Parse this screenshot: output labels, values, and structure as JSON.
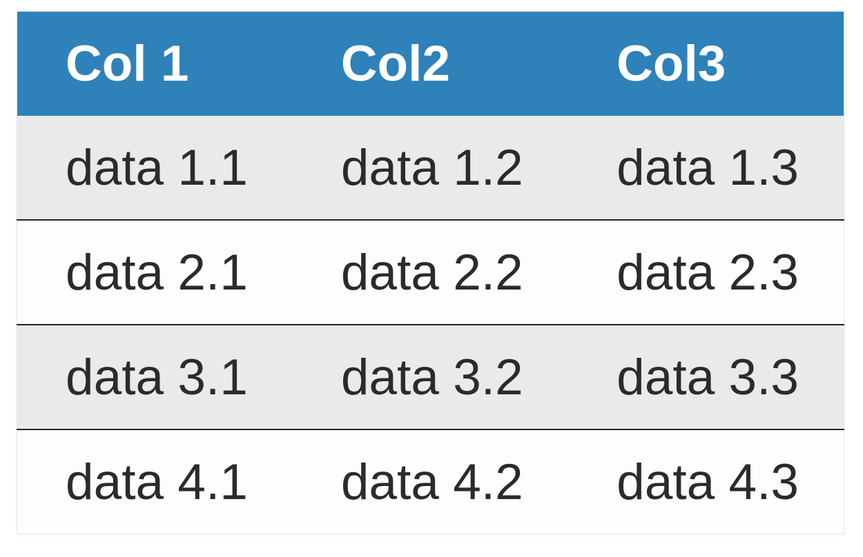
{
  "table": {
    "columns": [
      "Col 1",
      "Col2",
      "Col3"
    ],
    "rows": [
      [
        "data 1.1",
        "data 1.2",
        "data 1.3"
      ],
      [
        "data 2.1",
        "data 2.2",
        "data 2.3"
      ],
      [
        "data 3.1",
        "data 3.2",
        "data 3.3"
      ],
      [
        "data 4.1",
        "data 4.2",
        "data 4.3"
      ]
    ],
    "colors": {
      "header_bg": "#2e82b9",
      "header_text": "#ffffff",
      "row_stripe_bg": "#eaeaea",
      "row_bg": "#fdfdfd",
      "row_divider": "#222222",
      "cell_text": "#2b2b2b",
      "outer_border": "#e7e7e7"
    }
  }
}
